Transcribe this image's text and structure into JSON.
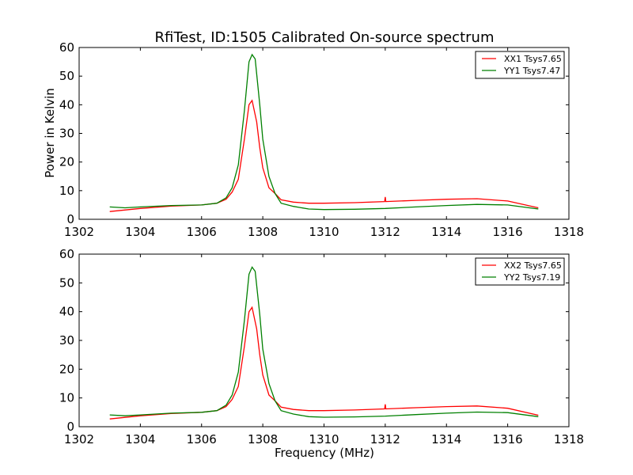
{
  "chart_data": {
    "title": "RfiTest, ID:1505 Calibrated On-source spectrum",
    "xlabel": "Frequency (MHz)",
    "ylabel": "Power in Kelvin",
    "colors": {
      "XX": "#ff0000",
      "YY": "#008000"
    },
    "panels": [
      {
        "type": "line",
        "xlim": [
          1302,
          1318
        ],
        "ylim": [
          0,
          60
        ],
        "xticks": [
          1302,
          1304,
          1306,
          1308,
          1310,
          1312,
          1314,
          1316,
          1318
        ],
        "yticks": [
          0,
          10,
          20,
          30,
          40,
          50,
          60
        ],
        "legend": "top-right",
        "series": [
          {
            "name": "XX1 Tsys7.65",
            "color": "#ff0000",
            "x": [
              1303,
              1304,
              1305,
              1306,
              1306.5,
              1306.8,
              1307,
              1307.2,
              1307.4,
              1307.55,
              1307.65,
              1307.8,
              1307.9,
              1308,
              1308.2,
              1308.4,
              1308.6,
              1309,
              1309.5,
              1310,
              1311,
              1311.98,
              1312,
              1312.02,
              1313,
              1314,
              1315,
              1316,
              1317
            ],
            "y": [
              2.7,
              3.8,
              4.6,
              5.0,
              5.6,
              7.0,
              9.5,
              14,
              28,
              40,
              41.5,
              34,
              25,
              18,
              11,
              9,
              6.8,
              6.0,
              5.6,
              5.6,
              5.8,
              6.2,
              7.8,
              6.2,
              6.6,
              7.0,
              7.2,
              6.4,
              4.0
            ]
          },
          {
            "name": "YY1 Tsys7.47",
            "color": "#008000",
            "x": [
              1303,
              1303.5,
              1304,
              1305,
              1306,
              1306.5,
              1306.8,
              1307,
              1307.2,
              1307.4,
              1307.55,
              1307.65,
              1307.75,
              1307.9,
              1308,
              1308.2,
              1308.4,
              1308.6,
              1309,
              1309.5,
              1310,
              1311,
              1312,
              1313,
              1314,
              1315,
              1316,
              1317
            ],
            "y": [
              4.3,
              4.0,
              4.3,
              4.8,
              5.0,
              5.6,
              7.5,
              11,
              19,
              38,
              55,
              57.5,
              56,
              40,
              28,
              15,
              9,
              5.6,
              4.5,
              3.6,
              3.4,
              3.5,
              3.8,
              4.3,
              4.8,
              5.2,
              5.0,
              3.6
            ]
          }
        ]
      },
      {
        "type": "line",
        "xlim": [
          1302,
          1318
        ],
        "ylim": [
          0,
          60
        ],
        "xticks": [
          1302,
          1304,
          1306,
          1308,
          1310,
          1312,
          1314,
          1316,
          1318
        ],
        "yticks": [
          0,
          10,
          20,
          30,
          40,
          50,
          60
        ],
        "legend": "top-right",
        "series": [
          {
            "name": "XX2 Tsys7.65",
            "color": "#ff0000",
            "x": [
              1303,
              1304,
              1305,
              1306,
              1306.5,
              1306.8,
              1307,
              1307.2,
              1307.4,
              1307.55,
              1307.65,
              1307.8,
              1307.9,
              1308,
              1308.2,
              1308.4,
              1308.6,
              1309,
              1309.5,
              1310,
              1311,
              1311.98,
              1312,
              1312.02,
              1313,
              1314,
              1315,
              1316,
              1317
            ],
            "y": [
              2.7,
              3.8,
              4.6,
              5.0,
              5.6,
              7.0,
              9.5,
              14,
              28,
              40,
              41.5,
              34,
              25,
              18,
              11,
              9,
              6.8,
              6.0,
              5.6,
              5.6,
              5.8,
              6.2,
              7.8,
              6.2,
              6.6,
              7.0,
              7.2,
              6.4,
              4.0
            ]
          },
          {
            "name": "YY2 Tsys7.19",
            "color": "#008000",
            "x": [
              1303,
              1303.5,
              1304,
              1305,
              1306,
              1306.5,
              1306.8,
              1307,
              1307.2,
              1307.4,
              1307.55,
              1307.65,
              1307.75,
              1307.9,
              1308,
              1308.2,
              1308.4,
              1308.6,
              1309,
              1309.5,
              1310,
              1311,
              1312,
              1313,
              1314,
              1315,
              1316,
              1317
            ],
            "y": [
              4.1,
              3.8,
              4.1,
              4.7,
              5.0,
              5.6,
              7.5,
              11,
              19,
              37,
              53,
              55.5,
              54,
              39,
              27,
              15,
              9,
              5.6,
              4.4,
              3.5,
              3.3,
              3.4,
              3.7,
              4.2,
              4.7,
              5.1,
              4.9,
              3.5
            ]
          }
        ]
      }
    ]
  }
}
